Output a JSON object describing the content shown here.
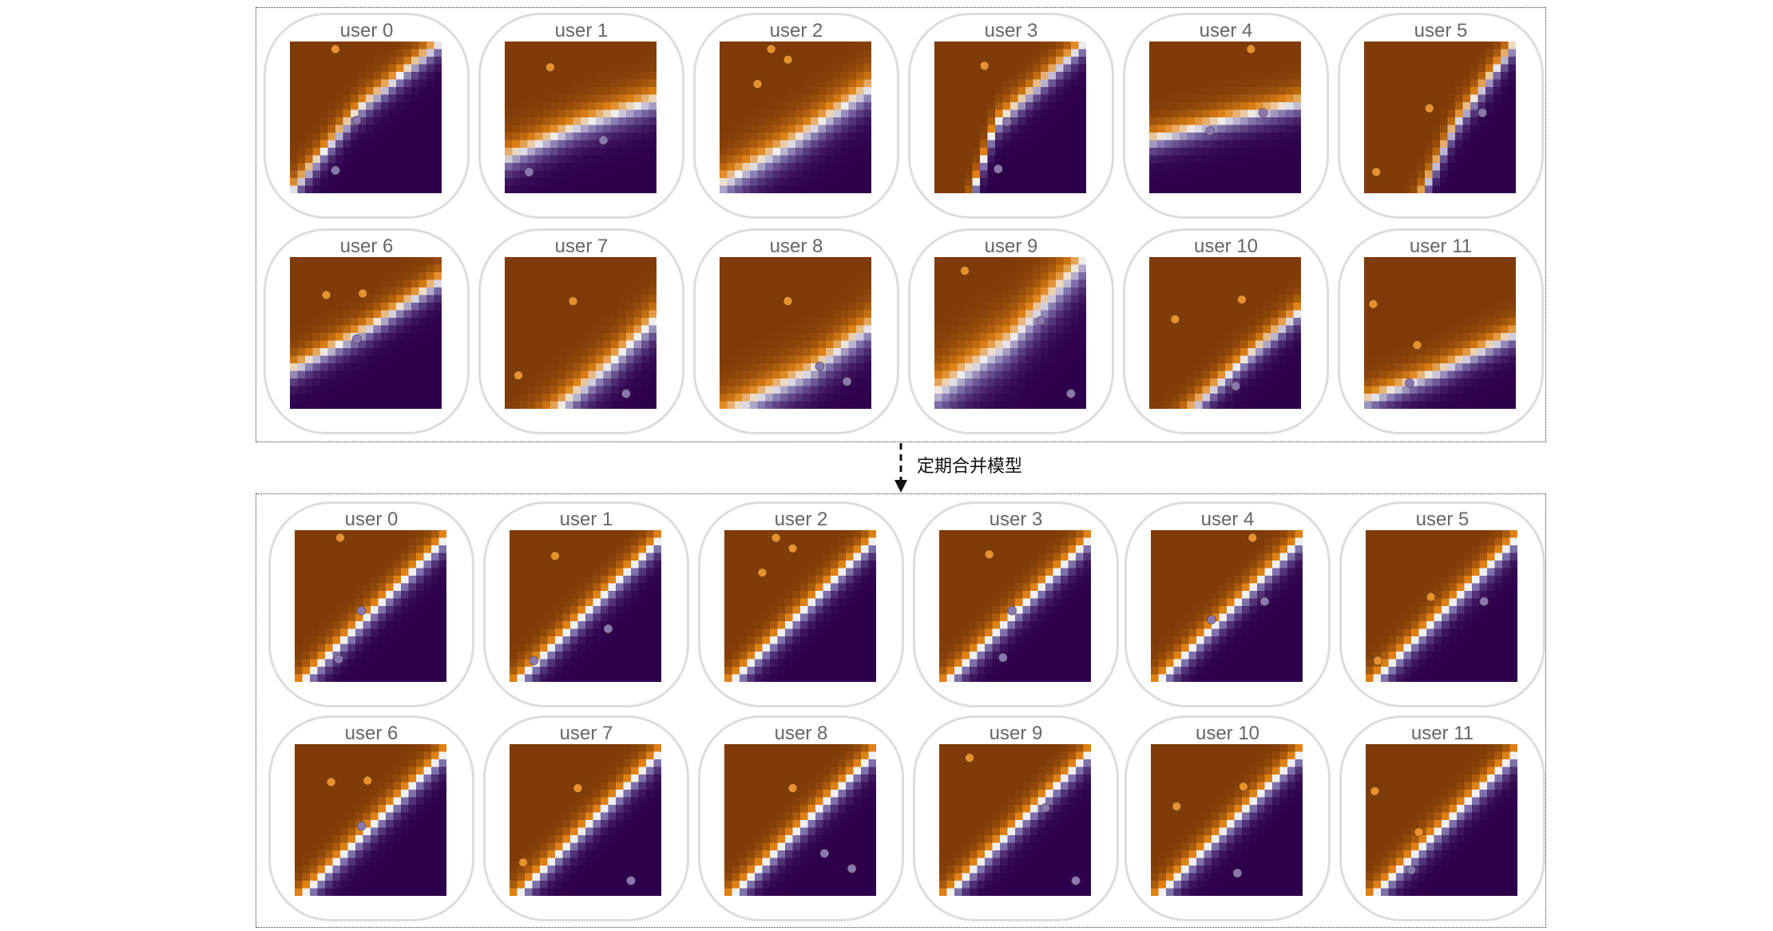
{
  "merge_label": "定期合并模型",
  "colors": {
    "orange_dark": "#7f3b08",
    "orange_mid": "#e08214",
    "neutral": "#f0f0f0",
    "purple_mid": "#8073ac",
    "purple_dark": "#2d004b",
    "point_orange": "#e8902c",
    "point_purple": "#8a78b0",
    "card_border": "#dcdcdc"
  },
  "groups": [
    {
      "id": "before",
      "users": [
        {
          "label": "user 0",
          "boundary": [
            [
              0.0,
              0.0
            ],
            [
              0.45,
              0.55
            ],
            [
              1.0,
              1.0
            ]
          ],
          "width": 0.1,
          "orange_points": [
            [
              0.3,
              0.95
            ]
          ],
          "purple_points": [
            [
              0.44,
              0.48
            ],
            [
              0.3,
              0.15
            ]
          ]
        },
        {
          "label": "user 1",
          "boundary": [
            [
              0.0,
              0.23
            ],
            [
              0.5,
              0.45
            ],
            [
              1.0,
              0.62
            ]
          ],
          "width": 0.12,
          "orange_points": [
            [
              0.3,
              0.83
            ]
          ],
          "purple_points": [
            [
              0.65,
              0.35
            ],
            [
              0.16,
              0.14
            ]
          ]
        },
        {
          "label": "user 2",
          "boundary": [
            [
              0.0,
              0.05
            ],
            [
              0.5,
              0.35
            ],
            [
              1.0,
              0.7
            ]
          ],
          "width": 0.14,
          "orange_points": [
            [
              0.34,
              0.95
            ],
            [
              0.45,
              0.88
            ],
            [
              0.25,
              0.72
            ]
          ],
          "purple_points": []
        },
        {
          "label": "user 3",
          "boundary": [
            [
              0.25,
              0.0
            ],
            [
              0.4,
              0.45
            ],
            [
              1.0,
              1.0
            ]
          ],
          "width": 0.1,
          "orange_points": [
            [
              0.33,
              0.84
            ]
          ],
          "purple_points": [
            [
              0.48,
              0.47
            ],
            [
              0.42,
              0.16
            ]
          ]
        },
        {
          "label": "user 4",
          "boundary": [
            [
              0.0,
              0.35
            ],
            [
              0.5,
              0.48
            ],
            [
              1.0,
              0.6
            ]
          ],
          "width": 0.1,
          "orange_points": [
            [
              0.67,
              0.95
            ]
          ],
          "purple_points": [
            [
              0.75,
              0.53
            ],
            [
              0.4,
              0.41
            ]
          ]
        },
        {
          "label": "user 5",
          "boundary": [
            [
              0.38,
              0.0
            ],
            [
              0.6,
              0.45
            ],
            [
              1.0,
              1.0
            ]
          ],
          "width": 0.1,
          "orange_points": [
            [
              0.43,
              0.56
            ],
            [
              0.08,
              0.14
            ]
          ],
          "purple_points": [
            [
              0.78,
              0.53
            ]
          ]
        },
        {
          "label": "user 6",
          "boundary": [
            [
              0.0,
              0.25
            ],
            [
              0.5,
              0.52
            ],
            [
              1.0,
              0.85
            ]
          ],
          "width": 0.1,
          "orange_points": [
            [
              0.24,
              0.75
            ],
            [
              0.48,
              0.76
            ]
          ],
          "purple_points": [
            [
              0.44,
              0.46
            ]
          ]
        },
        {
          "label": "user 7",
          "boundary": [
            [
              0.35,
              0.0
            ],
            [
              0.7,
              0.3
            ],
            [
              1.0,
              0.6
            ]
          ],
          "width": 0.14,
          "orange_points": [
            [
              0.45,
              0.71
            ],
            [
              0.09,
              0.22
            ]
          ],
          "purple_points": [
            [
              0.8,
              0.1
            ]
          ]
        },
        {
          "label": "user 8",
          "boundary": [
            [
              0.1,
              0.0
            ],
            [
              0.6,
              0.25
            ],
            [
              1.0,
              0.55
            ]
          ],
          "width": 0.14,
          "orange_points": [
            [
              0.45,
              0.71
            ]
          ],
          "purple_points": [
            [
              0.66,
              0.28
            ],
            [
              0.84,
              0.18
            ]
          ]
        },
        {
          "label": "user 9",
          "boundary": [
            [
              0.0,
              0.1
            ],
            [
              0.5,
              0.45
            ],
            [
              1.0,
              1.0
            ]
          ],
          "width": 0.18,
          "orange_points": [
            [
              0.2,
              0.91
            ]
          ],
          "purple_points": [
            [
              0.7,
              0.58
            ],
            [
              0.9,
              0.1
            ]
          ]
        },
        {
          "label": "user 10",
          "boundary": [
            [
              0.28,
              0.0
            ],
            [
              0.6,
              0.3
            ],
            [
              1.0,
              0.65
            ]
          ],
          "width": 0.1,
          "orange_points": [
            [
              0.61,
              0.72
            ],
            [
              0.17,
              0.59
            ]
          ],
          "purple_points": [
            [
              0.57,
              0.15
            ]
          ]
        },
        {
          "label": "user 11",
          "boundary": [
            [
              0.0,
              0.05
            ],
            [
              0.5,
              0.25
            ],
            [
              1.0,
              0.5
            ]
          ],
          "width": 0.1,
          "orange_points": [
            [
              0.06,
              0.69
            ],
            [
              0.35,
              0.42
            ]
          ],
          "purple_points": [
            [
              0.3,
              0.17
            ]
          ]
        }
      ]
    },
    {
      "id": "after",
      "users": [
        {
          "label": "user 0",
          "boundary": [
            [
              0.05,
              0.0
            ],
            [
              0.5,
              0.45
            ],
            [
              1.0,
              0.95
            ]
          ],
          "width": 0.1,
          "orange_points": [
            [
              0.3,
              0.95
            ]
          ],
          "purple_points": [
            [
              0.44,
              0.47
            ],
            [
              0.29,
              0.15
            ]
          ]
        },
        {
          "label": "user 1",
          "boundary": [
            [
              0.05,
              0.0
            ],
            [
              0.5,
              0.45
            ],
            [
              1.0,
              0.95
            ]
          ],
          "width": 0.1,
          "orange_points": [
            [
              0.3,
              0.83
            ]
          ],
          "purple_points": [
            [
              0.65,
              0.35
            ],
            [
              0.16,
              0.14
            ]
          ]
        },
        {
          "label": "user 2",
          "boundary": [
            [
              0.05,
              0.0
            ],
            [
              0.5,
              0.45
            ],
            [
              1.0,
              0.95
            ]
          ],
          "width": 0.1,
          "orange_points": [
            [
              0.34,
              0.95
            ],
            [
              0.45,
              0.88
            ],
            [
              0.25,
              0.72
            ]
          ],
          "purple_points": []
        },
        {
          "label": "user 3",
          "boundary": [
            [
              0.05,
              0.0
            ],
            [
              0.5,
              0.45
            ],
            [
              1.0,
              0.95
            ]
          ],
          "width": 0.1,
          "orange_points": [
            [
              0.33,
              0.84
            ]
          ],
          "purple_points": [
            [
              0.48,
              0.47
            ],
            [
              0.42,
              0.16
            ]
          ]
        },
        {
          "label": "user 4",
          "boundary": [
            [
              0.05,
              0.0
            ],
            [
              0.5,
              0.45
            ],
            [
              1.0,
              0.95
            ]
          ],
          "width": 0.1,
          "orange_points": [
            [
              0.67,
              0.95
            ]
          ],
          "purple_points": [
            [
              0.75,
              0.53
            ],
            [
              0.4,
              0.41
            ]
          ]
        },
        {
          "label": "user 5",
          "boundary": [
            [
              0.05,
              0.0
            ],
            [
              0.5,
              0.45
            ],
            [
              1.0,
              0.95
            ]
          ],
          "width": 0.1,
          "orange_points": [
            [
              0.43,
              0.56
            ],
            [
              0.08,
              0.14
            ]
          ],
          "purple_points": [
            [
              0.78,
              0.53
            ]
          ]
        },
        {
          "label": "user 6",
          "boundary": [
            [
              0.05,
              0.0
            ],
            [
              0.5,
              0.45
            ],
            [
              1.0,
              0.95
            ]
          ],
          "width": 0.1,
          "orange_points": [
            [
              0.24,
              0.75
            ],
            [
              0.48,
              0.76
            ]
          ],
          "purple_points": [
            [
              0.44,
              0.46
            ]
          ]
        },
        {
          "label": "user 7",
          "boundary": [
            [
              0.05,
              0.0
            ],
            [
              0.5,
              0.45
            ],
            [
              1.0,
              0.95
            ]
          ],
          "width": 0.1,
          "orange_points": [
            [
              0.45,
              0.71
            ],
            [
              0.09,
              0.22
            ]
          ],
          "purple_points": [
            [
              0.8,
              0.1
            ]
          ]
        },
        {
          "label": "user 8",
          "boundary": [
            [
              0.05,
              0.0
            ],
            [
              0.5,
              0.45
            ],
            [
              1.0,
              0.95
            ]
          ],
          "width": 0.1,
          "orange_points": [
            [
              0.45,
              0.71
            ]
          ],
          "purple_points": [
            [
              0.66,
              0.28
            ],
            [
              0.84,
              0.18
            ]
          ]
        },
        {
          "label": "user 9",
          "boundary": [
            [
              0.05,
              0.0
            ],
            [
              0.5,
              0.45
            ],
            [
              1.0,
              0.95
            ]
          ],
          "width": 0.1,
          "orange_points": [
            [
              0.2,
              0.91
            ]
          ],
          "purple_points": [
            [
              0.7,
              0.58
            ],
            [
              0.9,
              0.1
            ]
          ]
        },
        {
          "label": "user 10",
          "boundary": [
            [
              0.05,
              0.0
            ],
            [
              0.5,
              0.45
            ],
            [
              1.0,
              0.95
            ]
          ],
          "width": 0.1,
          "orange_points": [
            [
              0.61,
              0.72
            ],
            [
              0.17,
              0.59
            ]
          ],
          "purple_points": [
            [
              0.57,
              0.15
            ]
          ]
        },
        {
          "label": "user 11",
          "boundary": [
            [
              0.05,
              0.0
            ],
            [
              0.5,
              0.45
            ],
            [
              1.0,
              0.95
            ]
          ],
          "width": 0.1,
          "orange_points": [
            [
              0.06,
              0.69
            ],
            [
              0.35,
              0.42
            ]
          ],
          "purple_points": [
            [
              0.3,
              0.17
            ]
          ]
        }
      ]
    }
  ]
}
